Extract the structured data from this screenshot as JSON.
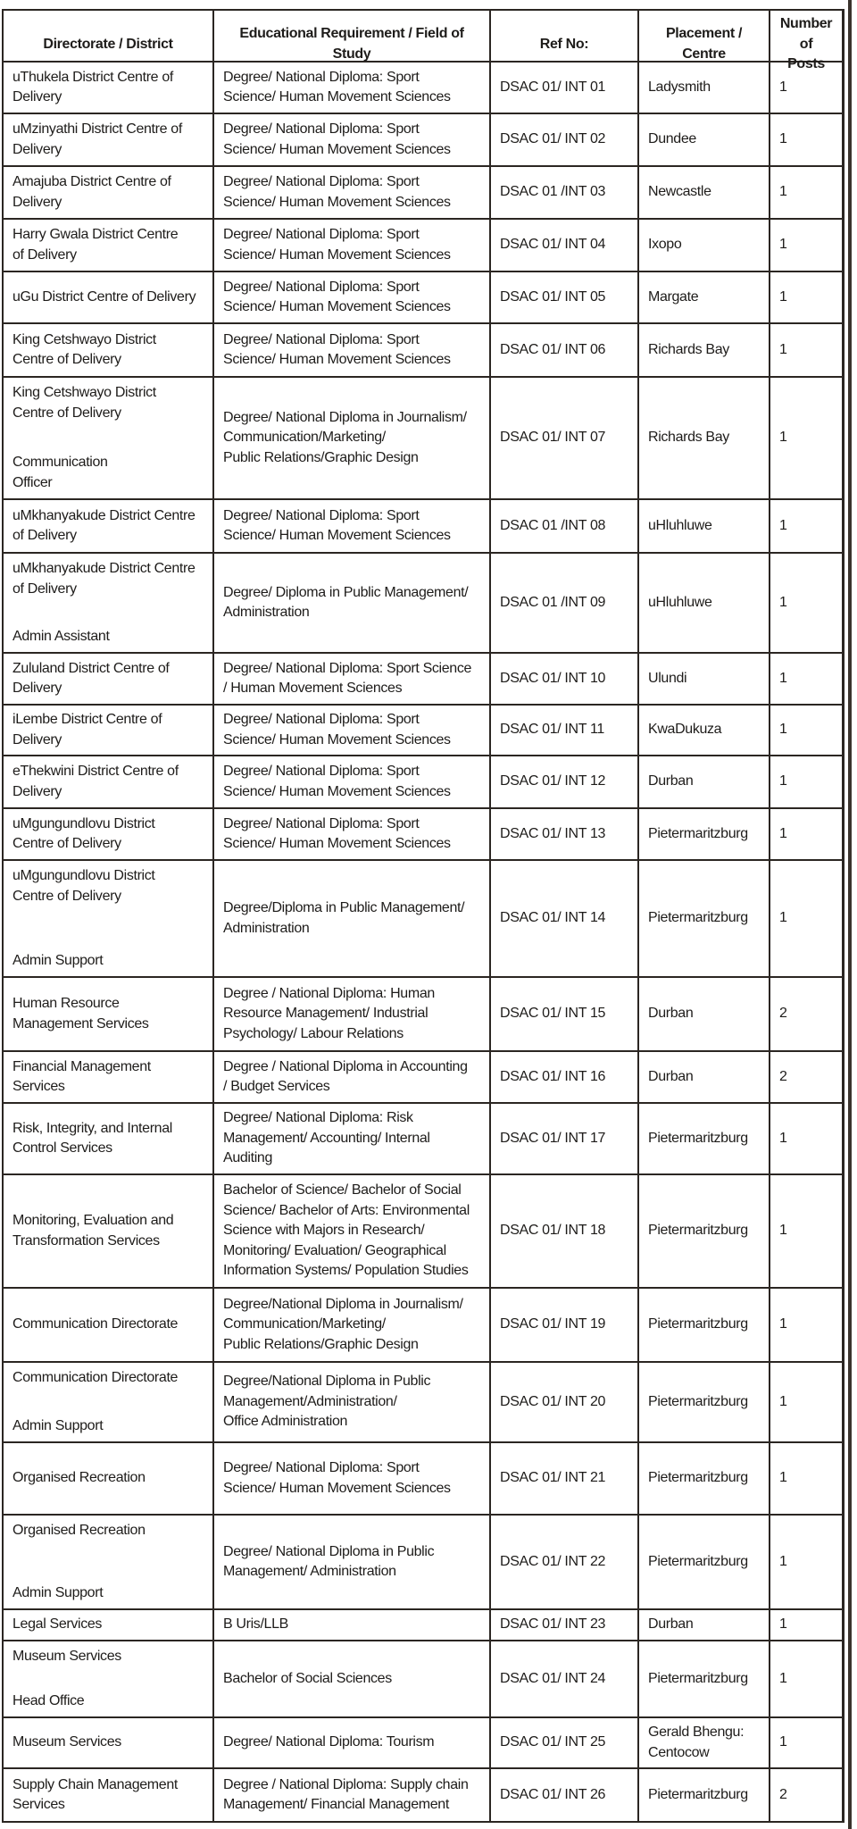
{
  "headers": [
    "Directorate / District",
    "Educational Requirement / Field of\nStudy",
    "Ref No:",
    "Placement /\nCentre",
    "Number\nof Posts"
  ],
  "rows": [
    {
      "directorate": [
        "uThukela District Centre of\nDelivery"
      ],
      "requirement": "Degree/ National Diploma: Sport\nScience/ Human Movement Sciences",
      "ref": "DSAC 01/ INT 01",
      "placement": "Ladysmith",
      "posts": "1"
    },
    {
      "directorate": [
        "uMzinyathi District Centre of\nDelivery"
      ],
      "requirement": "Degree/ National Diploma: Sport\nScience/ Human Movement Sciences",
      "ref": "DSAC 01/ INT 02",
      "placement": "Dundee",
      "posts": "1"
    },
    {
      "directorate": [
        "Amajuba District Centre of\nDelivery"
      ],
      "requirement": "Degree/ National Diploma: Sport\nScience/ Human Movement Sciences",
      "ref": "DSAC 01 /INT 03",
      "placement": "Newcastle",
      "posts": "1"
    },
    {
      "directorate": [
        "Harry Gwala District Centre\nof Delivery"
      ],
      "requirement": "Degree/ National Diploma: Sport\nScience/ Human Movement Sciences",
      "ref": "DSAC 01/ INT 04",
      "placement": "Ixopo",
      "posts": "1"
    },
    {
      "directorate": [
        "uGu District Centre of Delivery"
      ],
      "requirement": "Degree/ National Diploma: Sport\nScience/ Human Movement Sciences",
      "ref": "DSAC 01/ INT 05",
      "placement": "Margate",
      "posts": "1"
    },
    {
      "directorate": [
        "King Cetshwayo District\nCentre of Delivery"
      ],
      "requirement": "Degree/ National Diploma: Sport\nScience/ Human Movement Sciences",
      "ref": "DSAC 01/ INT 06",
      "placement": "Richards Bay",
      "posts": "1"
    },
    {
      "directorate": [
        "King Cetshwayo District\nCentre of Delivery",
        "Communication\nOfficer"
      ],
      "requirement": "Degree/ National Diploma in Journalism/\nCommunication/Marketing/\nPublic Relations/Graphic Design",
      "ref": "DSAC 01/ INT 07",
      "placement": "Richards Bay",
      "posts": "1"
    },
    {
      "directorate": [
        "uMkhanyakude District Centre\nof Delivery"
      ],
      "requirement": "Degree/ National Diploma: Sport\nScience/ Human Movement Sciences",
      "ref": "DSAC 01 /INT 08",
      "placement": "uHluhluwe",
      "posts": "1"
    },
    {
      "directorate": [
        "uMkhanyakude District Centre\nof Delivery",
        "Admin Assistant"
      ],
      "requirement": "Degree/ Diploma in Public Management/\nAdministration",
      "ref": "DSAC 01 /INT 09",
      "placement": "uHluhluwe",
      "posts": "1"
    },
    {
      "directorate": [
        "Zululand District Centre of\nDelivery"
      ],
      "requirement": "Degree/ National Diploma: Sport Science\n/ Human Movement Sciences",
      "ref": "DSAC 01/ INT 10",
      "placement": "Ulundi",
      "posts": "1"
    },
    {
      "directorate": [
        "iLembe District Centre of\nDelivery"
      ],
      "requirement": "Degree/ National Diploma: Sport\nScience/ Human Movement Sciences",
      "ref": "DSAC 01/ INT 11",
      "placement": "KwaDukuza",
      "posts": "1"
    },
    {
      "directorate": [
        "eThekwini District Centre of\nDelivery"
      ],
      "requirement": "Degree/ National Diploma: Sport\nScience/ Human Movement Sciences",
      "ref": "DSAC 01/ INT 12",
      "placement": "Durban",
      "posts": "1"
    },
    {
      "directorate": [
        "uMgungundlovu District\nCentre of Delivery"
      ],
      "requirement": "Degree/ National Diploma: Sport\nScience/ Human Movement Sciences",
      "ref": "DSAC 01/ INT 13",
      "placement": "Pietermaritzburg",
      "posts": "1"
    },
    {
      "directorate": [
        "uMgungundlovu District\nCentre of Delivery",
        "Admin Support"
      ],
      "requirement": "Degree/Diploma in Public Management/\nAdministration",
      "ref": "DSAC 01/ INT 14",
      "placement": "Pietermaritzburg",
      "posts": "1"
    },
    {
      "directorate": [
        "Human Resource\nManagement Services"
      ],
      "requirement": "Degree / National Diploma: Human\nResource Management/ Industrial\nPsychology/ Labour Relations",
      "ref": "DSAC 01/ INT 15",
      "placement": "Durban",
      "posts": "2"
    },
    {
      "directorate": [
        "Financial Management\nServices"
      ],
      "requirement": "Degree / National Diploma in Accounting\n/ Budget Services",
      "ref": "DSAC 01/ INT 16",
      "placement": "Durban",
      "posts": "2"
    },
    {
      "directorate": [
        "Risk, Integrity, and Internal\nControl Services"
      ],
      "requirement": "Degree/ National Diploma: Risk\nManagement/ Accounting/ Internal\nAuditing",
      "ref": "DSAC 01/ INT 17",
      "placement": "Pietermaritzburg",
      "posts": "1"
    },
    {
      "directorate": [
        "Monitoring, Evaluation and\nTransformation Services"
      ],
      "requirement": "Bachelor of Science/ Bachelor of Social\nScience/ Bachelor of Arts: Environmental\nScience with Majors in Research/\nMonitoring/ Evaluation/ Geographical\nInformation Systems/ Population Studies",
      "ref": "DSAC 01/ INT 18",
      "placement": "Pietermaritzburg",
      "posts": "1"
    },
    {
      "directorate": [
        "Communication Directorate"
      ],
      "requirement": "Degree/National Diploma in Journalism/\nCommunication/Marketing/\nPublic Relations/Graphic Design",
      "ref": "DSAC 01/ INT 19",
      "placement": "Pietermaritzburg",
      "posts": "1"
    },
    {
      "directorate": [
        "Communication Directorate",
        "Admin Support"
      ],
      "requirement": "Degree/National Diploma in Public\nManagement/Administration/\nOffice Administration",
      "ref": "DSAC 01/ INT 20",
      "placement": "Pietermaritzburg",
      "posts": "1"
    },
    {
      "directorate": [
        "Organised Recreation"
      ],
      "requirement": "Degree/ National Diploma: Sport\nScience/ Human Movement Sciences",
      "ref": "DSAC 01/ INT 21",
      "placement": "Pietermaritzburg",
      "posts": "1"
    },
    {
      "directorate": [
        "Organised Recreation",
        "Admin Support"
      ],
      "requirement": "Degree/ National Diploma in Public\nManagement/ Administration",
      "ref": "DSAC 01/ INT 22",
      "placement": "Pietermaritzburg",
      "posts": "1"
    },
    {
      "directorate": [
        "Legal Services"
      ],
      "requirement": "B Uris/LLB",
      "ref": "DSAC 01/ INT 23",
      "placement": "Durban",
      "posts": "1"
    },
    {
      "directorate": [
        "Museum Services",
        "Head Office"
      ],
      "requirement": "Bachelor of Social Sciences",
      "ref": "DSAC 01/ INT 24",
      "placement": "Pietermaritzburg",
      "posts": "1"
    },
    {
      "directorate": [
        "Museum Services"
      ],
      "requirement": "Degree/ National Diploma: Tourism",
      "ref": "DSAC 01/ INT 25",
      "placement": "Gerald Bhengu:\nCentocow",
      "posts": "1"
    },
    {
      "directorate": [
        "Supply Chain Management\nServices"
      ],
      "requirement": "Degree / National Diploma: Supply chain\nManagement/ Financial Management",
      "ref": "DSAC 01/ INT 26",
      "placement": "Pietermaritzburg",
      "posts": "2"
    }
  ]
}
